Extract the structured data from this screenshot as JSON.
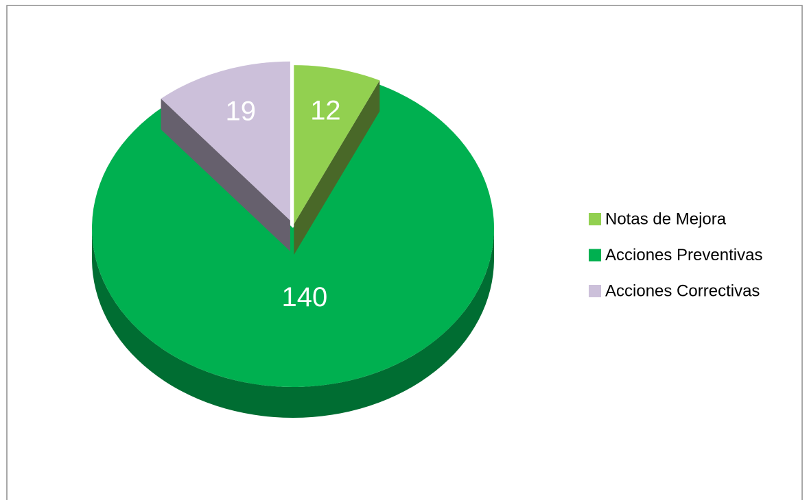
{
  "chart_data": {
    "type": "pie",
    "categories": [
      "Notas de Mejora",
      "Acciones Preventivas",
      "Acciones Correctivas"
    ],
    "values": [
      12,
      140,
      19
    ],
    "colors": [
      "#92d050",
      "#00b050",
      "#ccc0da"
    ],
    "legend": "right"
  }
}
